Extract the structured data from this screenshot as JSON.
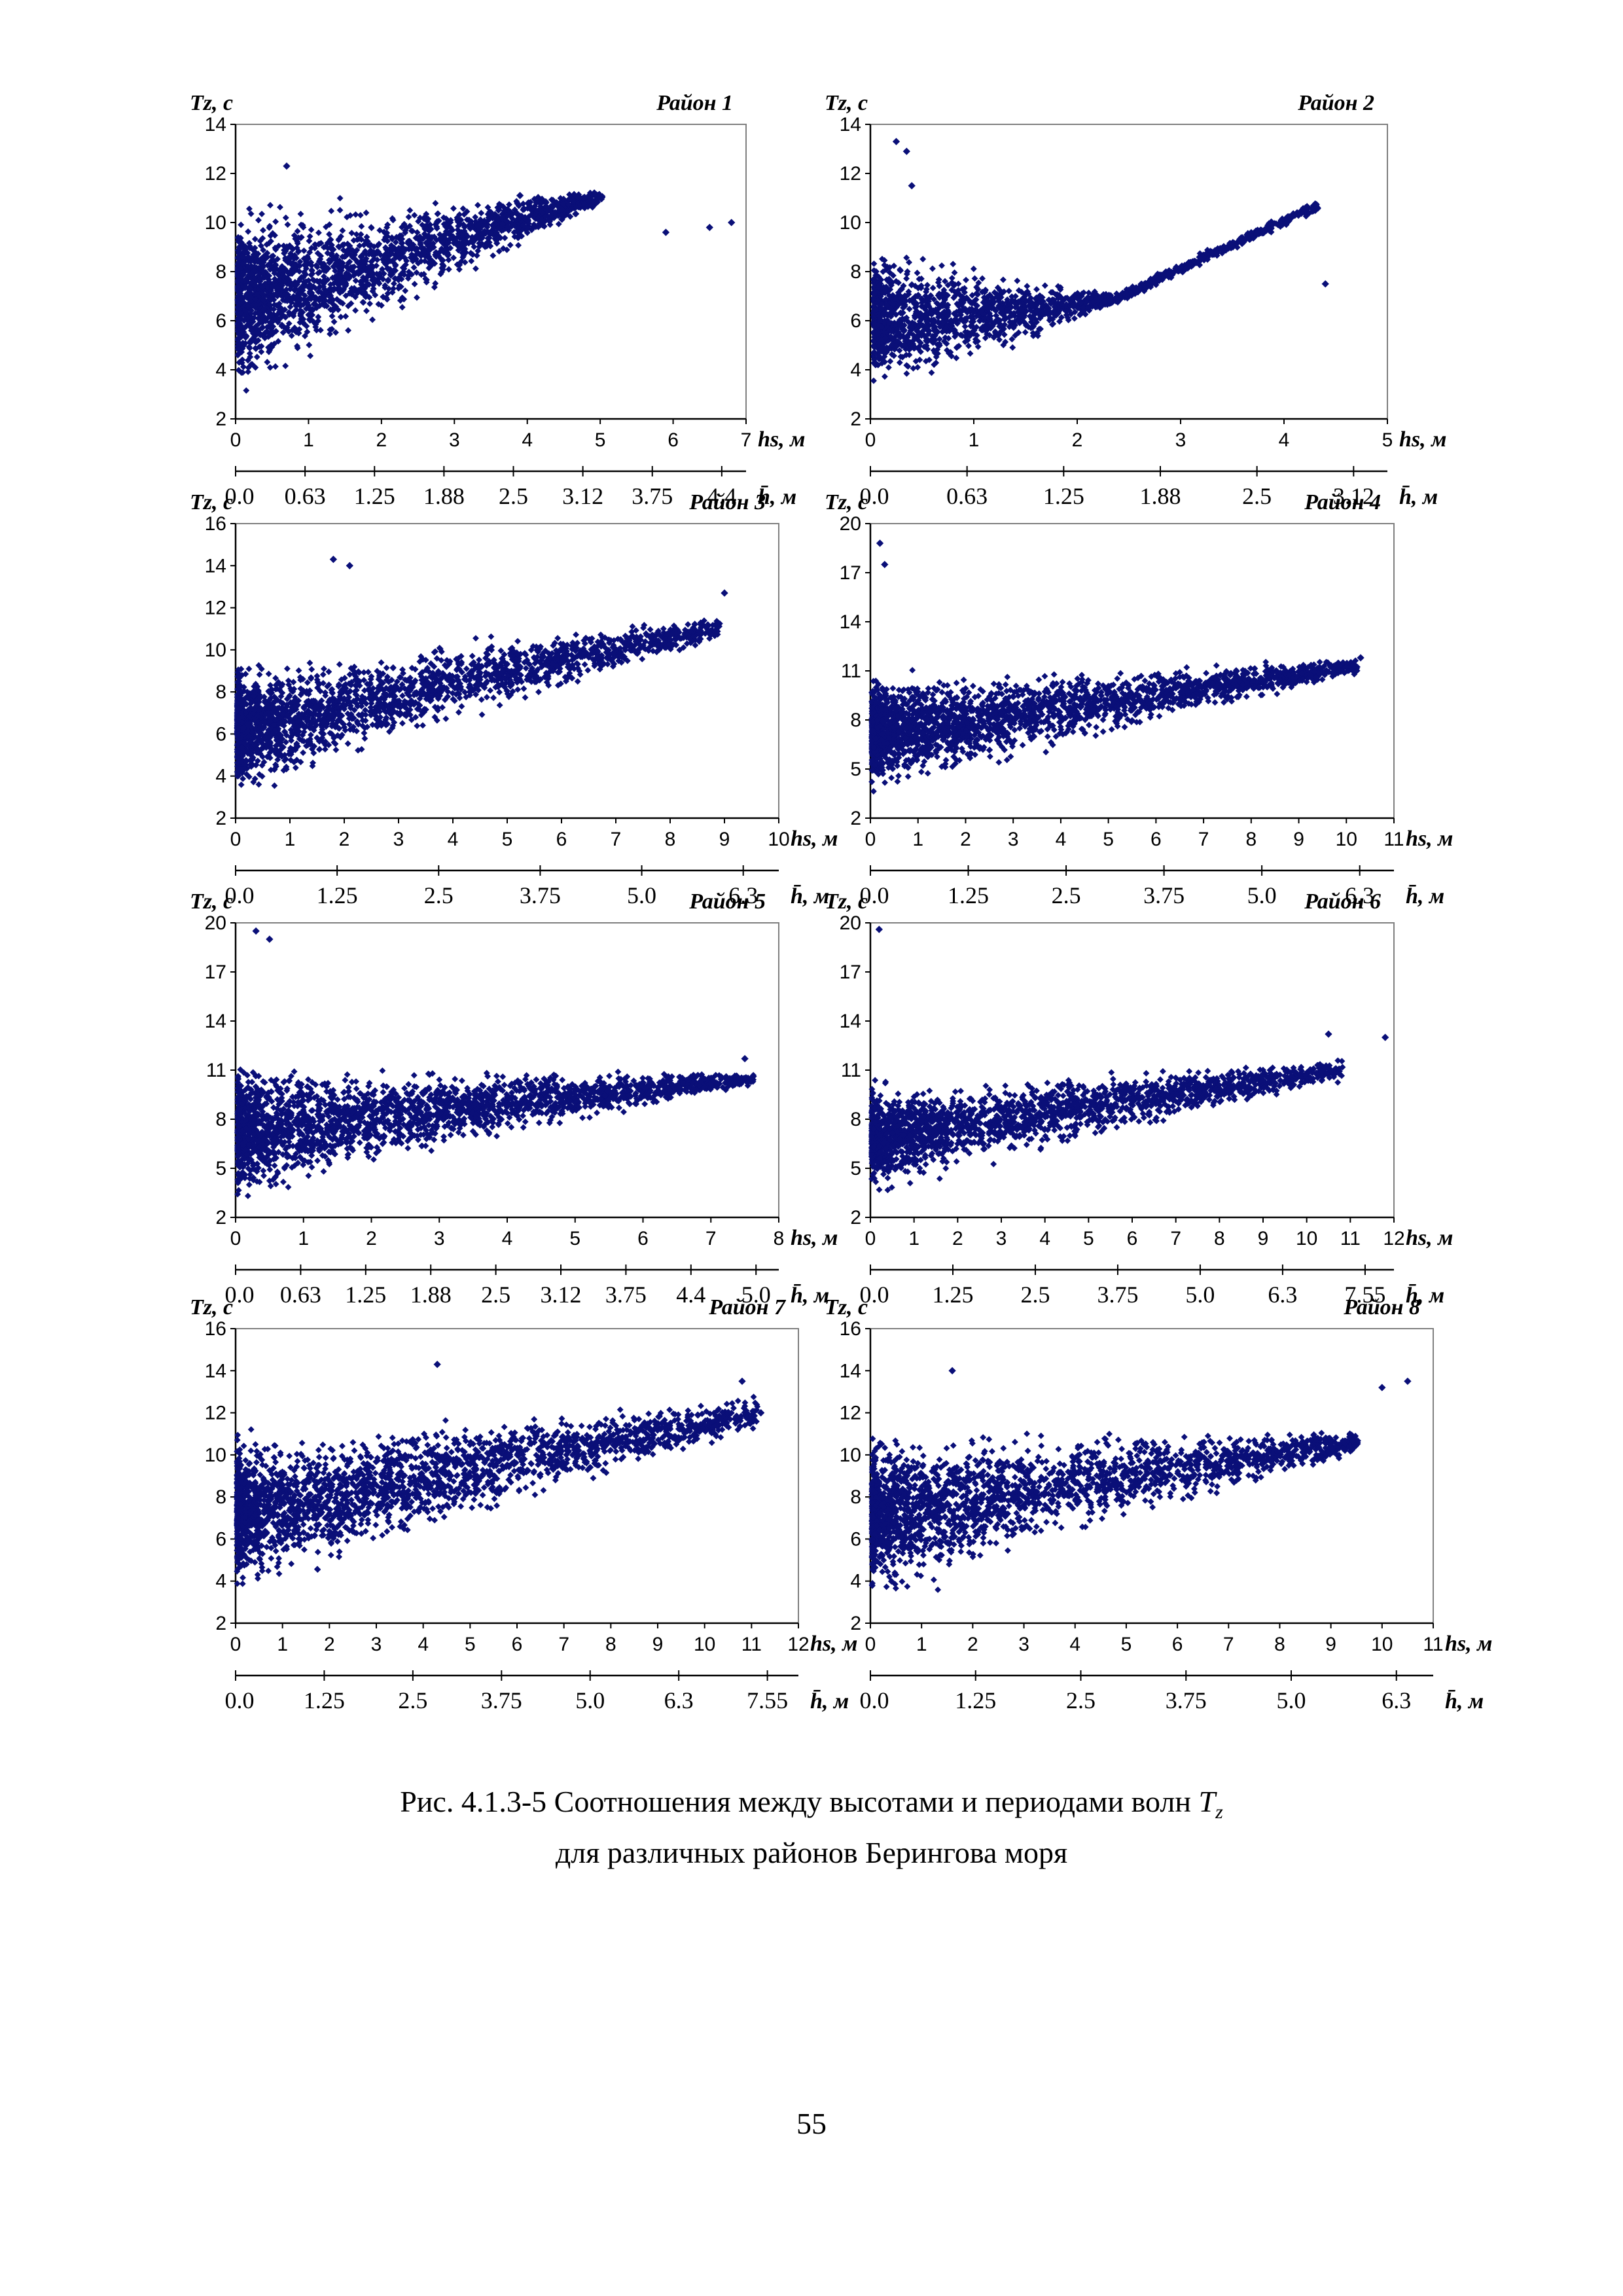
{
  "figure": {
    "caption_line1": "Рис. 4.1.3-5 Соотношения между высотами и периодами волн ",
    "caption_symbol": "T",
    "caption_subscript": "z",
    "caption_line2": "для различных районов Берингова моря",
    "page_number": "55"
  },
  "colors": {
    "points": "#0a0f78",
    "axis": "#000000",
    "plot_border": "#7f7f7f"
  },
  "chart_data": [
    {
      "type": "scatter",
      "title": "Район 1",
      "ylabel": "Tz, c",
      "xlabel": "hs, м",
      "x2label": "h̄, м",
      "xlim": [
        0,
        7
      ],
      "ylim": [
        2,
        14
      ],
      "xticks": [
        "0",
        "1",
        "2",
        "3",
        "4",
        "5",
        "6",
        "7"
      ],
      "yticks": [
        "2",
        "4",
        "6",
        "8",
        "10",
        "12",
        "14"
      ],
      "x2ticks": [
        "0.0",
        "0.63",
        "1.25",
        "1.88",
        "2.5",
        "3.12",
        "3.75",
        "4.4"
      ],
      "shape": {
        "n": 2200,
        "lo0": 2.7,
        "hi0": 11.2,
        "loSlope": 1.6,
        "hiSlope": 0.04,
        "loDecay": 1.2,
        "xMaxDense": 5.0
      },
      "sample_points": [
        {
          "x": 6.8,
          "y": 10.0
        },
        {
          "x": 6.5,
          "y": 9.8
        },
        {
          "x": 5.9,
          "y": 9.6
        },
        {
          "x": 3.9,
          "y": 11.1
        },
        {
          "x": 0.7,
          "y": 12.3
        }
      ]
    },
    {
      "type": "scatter",
      "title": "Район 2",
      "ylabel": "Tz, c",
      "xlabel": "hs, м",
      "x2label": "h̄, м",
      "xlim": [
        0,
        5
      ],
      "ylim": [
        2,
        14
      ],
      "xticks": [
        "0",
        "1",
        "2",
        "3",
        "4",
        "5"
      ],
      "yticks": [
        "2",
        "4",
        "6",
        "8",
        "10",
        "12",
        "14"
      ],
      "x2ticks": [
        "0.0",
        "0.63",
        "1.25",
        "1.88",
        "2.5",
        "3.12"
      ],
      "shape": {
        "n": 1800,
        "lo0": 2.7,
        "hi0": 9.5,
        "loSlope": 1.8,
        "hiSlope": -1.0,
        "loDecay": 1.0,
        "xMaxDense": 4.3
      },
      "sample_points": [
        {
          "x": 4.4,
          "y": 7.5
        },
        {
          "x": 0.25,
          "y": 13.3
        },
        {
          "x": 0.35,
          "y": 12.9
        },
        {
          "x": 0.4,
          "y": 11.5
        }
      ]
    },
    {
      "type": "scatter",
      "title": "Район 3",
      "ylabel": "Tz, c",
      "xlabel": "hs, м",
      "x2label": "h̄, м",
      "xlim": [
        0,
        10
      ],
      "ylim": [
        2,
        16
      ],
      "xticks": [
        "0",
        "1",
        "2",
        "3",
        "4",
        "5",
        "6",
        "7",
        "8",
        "9",
        "10"
      ],
      "yticks": [
        "2",
        "4",
        "6",
        "8",
        "10",
        "12",
        "14",
        "16"
      ],
      "x2ticks": [
        "0.0",
        "1.25",
        "2.5",
        "3.75",
        "5.0",
        "6.3"
      ],
      "shape": {
        "n": 2200,
        "lo0": 2.8,
        "hi0": 9.8,
        "loSlope": 0.85,
        "hiSlope": 0.22,
        "loDecay": 1.0,
        "xMaxDense": 8.9
      },
      "sample_points": [
        {
          "x": 9.0,
          "y": 12.7
        },
        {
          "x": 1.8,
          "y": 14.3
        },
        {
          "x": 2.1,
          "y": 14.0
        }
      ]
    },
    {
      "type": "scatter",
      "title": "Район 4",
      "ylabel": "Tz, c",
      "xlabel": "hs, м",
      "x2label": "h̄, м",
      "xlim": [
        0,
        11
      ],
      "ylim": [
        2,
        20
      ],
      "xticks": [
        "0",
        "1",
        "2",
        "3",
        "4",
        "5",
        "6",
        "7",
        "8",
        "9",
        "10",
        "11"
      ],
      "yticks": [
        "2",
        "5",
        "8",
        "11",
        "14",
        "17",
        "20"
      ],
      "x2ticks": [
        "0.0",
        "1.25",
        "2.5",
        "3.75",
        "5.0",
        "6.3"
      ],
      "shape": {
        "n": 2400,
        "lo0": 3.0,
        "hi0": 11.3,
        "loSlope": 0.75,
        "hiSlope": 0.05,
        "loDecay": 1.0,
        "xMaxDense": 10.2
      },
      "sample_points": [
        {
          "x": 0.2,
          "y": 18.8
        },
        {
          "x": 0.3,
          "y": 17.5
        },
        {
          "x": 10.3,
          "y": 11.8
        }
      ]
    },
    {
      "type": "scatter",
      "title": "Район 5",
      "ylabel": "Tz, c",
      "xlabel": "hs, м",
      "x2label": "h̄, м",
      "xlim": [
        0,
        8
      ],
      "ylim": [
        2,
        20
      ],
      "xticks": [
        "0",
        "1",
        "2",
        "3",
        "4",
        "5",
        "6",
        "7",
        "8"
      ],
      "yticks": [
        "2",
        "5",
        "8",
        "11",
        "14",
        "17",
        "20"
      ],
      "x2ticks": [
        "0.0",
        "0.63",
        "1.25",
        "1.88",
        "2.5",
        "3.12",
        "3.75",
        "4.4",
        "5.0"
      ],
      "shape": {
        "n": 2400,
        "lo0": 2.8,
        "hi0": 12.0,
        "loSlope": 0.95,
        "hiSlope": -0.15,
        "loDecay": 1.0,
        "xMaxDense": 7.6
      },
      "sample_points": [
        {
          "x": 0.3,
          "y": 19.5
        },
        {
          "x": 0.5,
          "y": 19.0
        },
        {
          "x": 7.5,
          "y": 11.7
        }
      ]
    },
    {
      "type": "scatter",
      "title": "Район 6",
      "ylabel": "Tz, c",
      "xlabel": "hs, м",
      "x2label": "h̄, м",
      "xlim": [
        0,
        12
      ],
      "ylim": [
        2,
        20
      ],
      "xticks": [
        "0",
        "1",
        "2",
        "3",
        "4",
        "5",
        "6",
        "7",
        "8",
        "9",
        "10",
        "11",
        "12"
      ],
      "yticks": [
        "2",
        "5",
        "8",
        "11",
        "14",
        "17",
        "20"
      ],
      "x2ticks": [
        "0.0",
        "1.25",
        "2.5",
        "3.75",
        "5.0",
        "6.3",
        "7.55"
      ],
      "shape": {
        "n": 2000,
        "lo0": 3.2,
        "hi0": 10.5,
        "loSlope": 0.65,
        "hiSlope": 0.12,
        "loDecay": 1.0,
        "xMaxDense": 10.8
      },
      "sample_points": [
        {
          "x": 0.2,
          "y": 19.6
        },
        {
          "x": 11.8,
          "y": 13.0
        },
        {
          "x": 10.5,
          "y": 13.2
        }
      ]
    },
    {
      "type": "scatter",
      "title": "Район 7",
      "ylabel": "Tz, c",
      "xlabel": "hs, м",
      "x2label": "h̄, м",
      "xlim": [
        0,
        12
      ],
      "ylim": [
        2,
        16
      ],
      "xticks": [
        "0",
        "1",
        "2",
        "3",
        "4",
        "5",
        "6",
        "7",
        "8",
        "9",
        "10",
        "11",
        "12"
      ],
      "yticks": [
        "2",
        "4",
        "6",
        "8",
        "10",
        "12",
        "14",
        "16"
      ],
      "x2ticks": [
        "0.0",
        "1.25",
        "2.5",
        "3.75",
        "5.0",
        "6.3",
        "7.55"
      ],
      "shape": {
        "n": 2400,
        "lo0": 3.0,
        "hi0": 11.5,
        "loSlope": 0.72,
        "hiSlope": 0.12,
        "loDecay": 1.0,
        "xMaxDense": 11.1
      },
      "sample_points": [
        {
          "x": 4.3,
          "y": 14.3
        },
        {
          "x": 11.2,
          "y": 12.0
        },
        {
          "x": 10.8,
          "y": 13.5
        }
      ]
    },
    {
      "type": "scatter",
      "title": "Район 8",
      "ylabel": "Tz, c",
      "xlabel": "hs, м",
      "x2label": "h̄, м",
      "xlim": [
        0,
        11
      ],
      "ylim": [
        2,
        16
      ],
      "xticks": [
        "0",
        "1",
        "2",
        "3",
        "4",
        "5",
        "6",
        "7",
        "8",
        "9",
        "10",
        "11"
      ],
      "yticks": [
        "2",
        "4",
        "6",
        "8",
        "10",
        "12",
        "14",
        "16"
      ],
      "x2ticks": [
        "0.0",
        "1.25",
        "2.5",
        "3.75",
        "5.0",
        "6.3"
      ],
      "shape": {
        "n": 2200,
        "lo0": 2.7,
        "hi0": 11.8,
        "loSlope": 0.75,
        "hiSlope": -0.05,
        "loDecay": 1.0,
        "xMaxDense": 9.5
      },
      "sample_points": [
        {
          "x": 10.5,
          "y": 13.5
        },
        {
          "x": 10.0,
          "y": 13.2
        },
        {
          "x": 1.6,
          "y": 14.0
        }
      ]
    }
  ]
}
